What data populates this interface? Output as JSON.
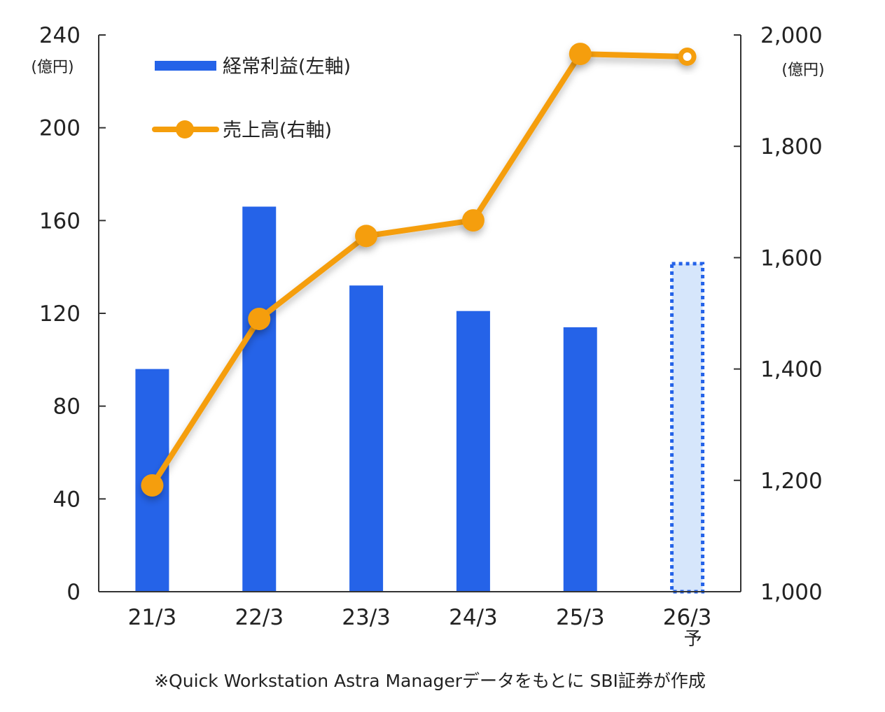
{
  "chart_data": {
    "type": "bar+line",
    "categories": [
      "21/3",
      "22/3",
      "23/3",
      "24/3",
      "25/3",
      "26/3"
    ],
    "category_sublabels": [
      "",
      "",
      "",
      "",
      "",
      "予"
    ],
    "forecast_index": 5,
    "series": [
      {
        "name": "経常利益(左軸)",
        "type": "bar",
        "axis": "left",
        "color": "#2563e8",
        "forecast_fill": "#d6e6fb",
        "values": [
          96,
          166,
          132,
          121,
          114,
          142
        ]
      },
      {
        "name": "売上高(右軸)",
        "type": "line",
        "axis": "right",
        "color": "#f59e0b",
        "values": [
          1191,
          1490,
          1639,
          1667,
          1966,
          1961
        ]
      }
    ],
    "left_axis": {
      "unit": "(億円)",
      "ylim": [
        0,
        240
      ],
      "ticks": [
        "0",
        "40",
        "80",
        "120",
        "160",
        "200",
        "240"
      ]
    },
    "right_axis": {
      "unit": "(億円)",
      "ylim": [
        1000,
        2000
      ],
      "ticks": [
        "1,000",
        "1,200",
        "1,400",
        "1,600",
        "1,800",
        "2,000"
      ]
    },
    "legend_position": "top-left",
    "grid": false,
    "source_note": "※Quick Workstation Astra Managerデータをもとに SBI証券が作成"
  }
}
